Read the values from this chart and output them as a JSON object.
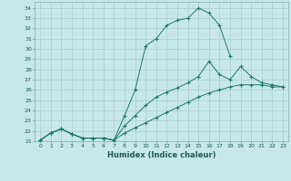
{
  "xlabel": "Humidex (Indice chaleur)",
  "bg_color": "#c8e8e8",
  "line_color": "#1a7a6a",
  "grid_color": "#a8cccc",
  "xlim": [
    -0.5,
    23.5
  ],
  "ylim": [
    21,
    34.6
  ],
  "yticks": [
    21,
    22,
    23,
    24,
    25,
    26,
    27,
    28,
    29,
    30,
    31,
    32,
    33,
    34
  ],
  "xticks": [
    0,
    1,
    2,
    3,
    4,
    5,
    6,
    7,
    8,
    9,
    10,
    11,
    12,
    13,
    14,
    15,
    16,
    17,
    18,
    19,
    20,
    21,
    22,
    23
  ],
  "curves": [
    {
      "x": [
        0,
        1,
        2,
        3,
        4,
        5,
        6,
        7,
        8,
        9,
        10,
        11,
        12,
        13,
        14,
        15,
        16,
        17,
        18
      ],
      "y": [
        21.1,
        21.8,
        22.2,
        21.7,
        21.3,
        21.3,
        21.3,
        21.1,
        23.5,
        26.0,
        30.3,
        31.0,
        32.3,
        32.8,
        33.0,
        34.0,
        33.5,
        32.3,
        29.3
      ]
    },
    {
      "x": [
        0,
        1,
        2,
        3,
        4,
        5,
        6,
        7,
        8,
        9,
        10,
        11,
        12,
        13,
        14,
        15,
        16,
        17,
        18,
        19,
        20,
        21,
        22,
        23
      ],
      "y": [
        21.1,
        21.8,
        22.2,
        21.7,
        21.3,
        21.3,
        21.3,
        21.1,
        22.5,
        23.5,
        24.5,
        25.3,
        25.8,
        26.2,
        26.7,
        27.3,
        28.8,
        27.5,
        27.0,
        28.3,
        27.3,
        26.7,
        26.5,
        26.3
      ]
    },
    {
      "x": [
        0,
        1,
        2,
        3,
        4,
        5,
        6,
        7,
        8,
        9,
        10,
        11,
        12,
        13,
        14,
        15,
        16,
        17,
        18,
        19,
        20,
        21,
        22,
        23
      ],
      "y": [
        21.1,
        21.8,
        22.2,
        21.7,
        21.3,
        21.3,
        21.3,
        21.1,
        21.8,
        22.3,
        22.8,
        23.3,
        23.8,
        24.3,
        24.8,
        25.3,
        25.7,
        26.0,
        26.3,
        26.5,
        26.5,
        26.5,
        26.3,
        26.3
      ]
    }
  ]
}
